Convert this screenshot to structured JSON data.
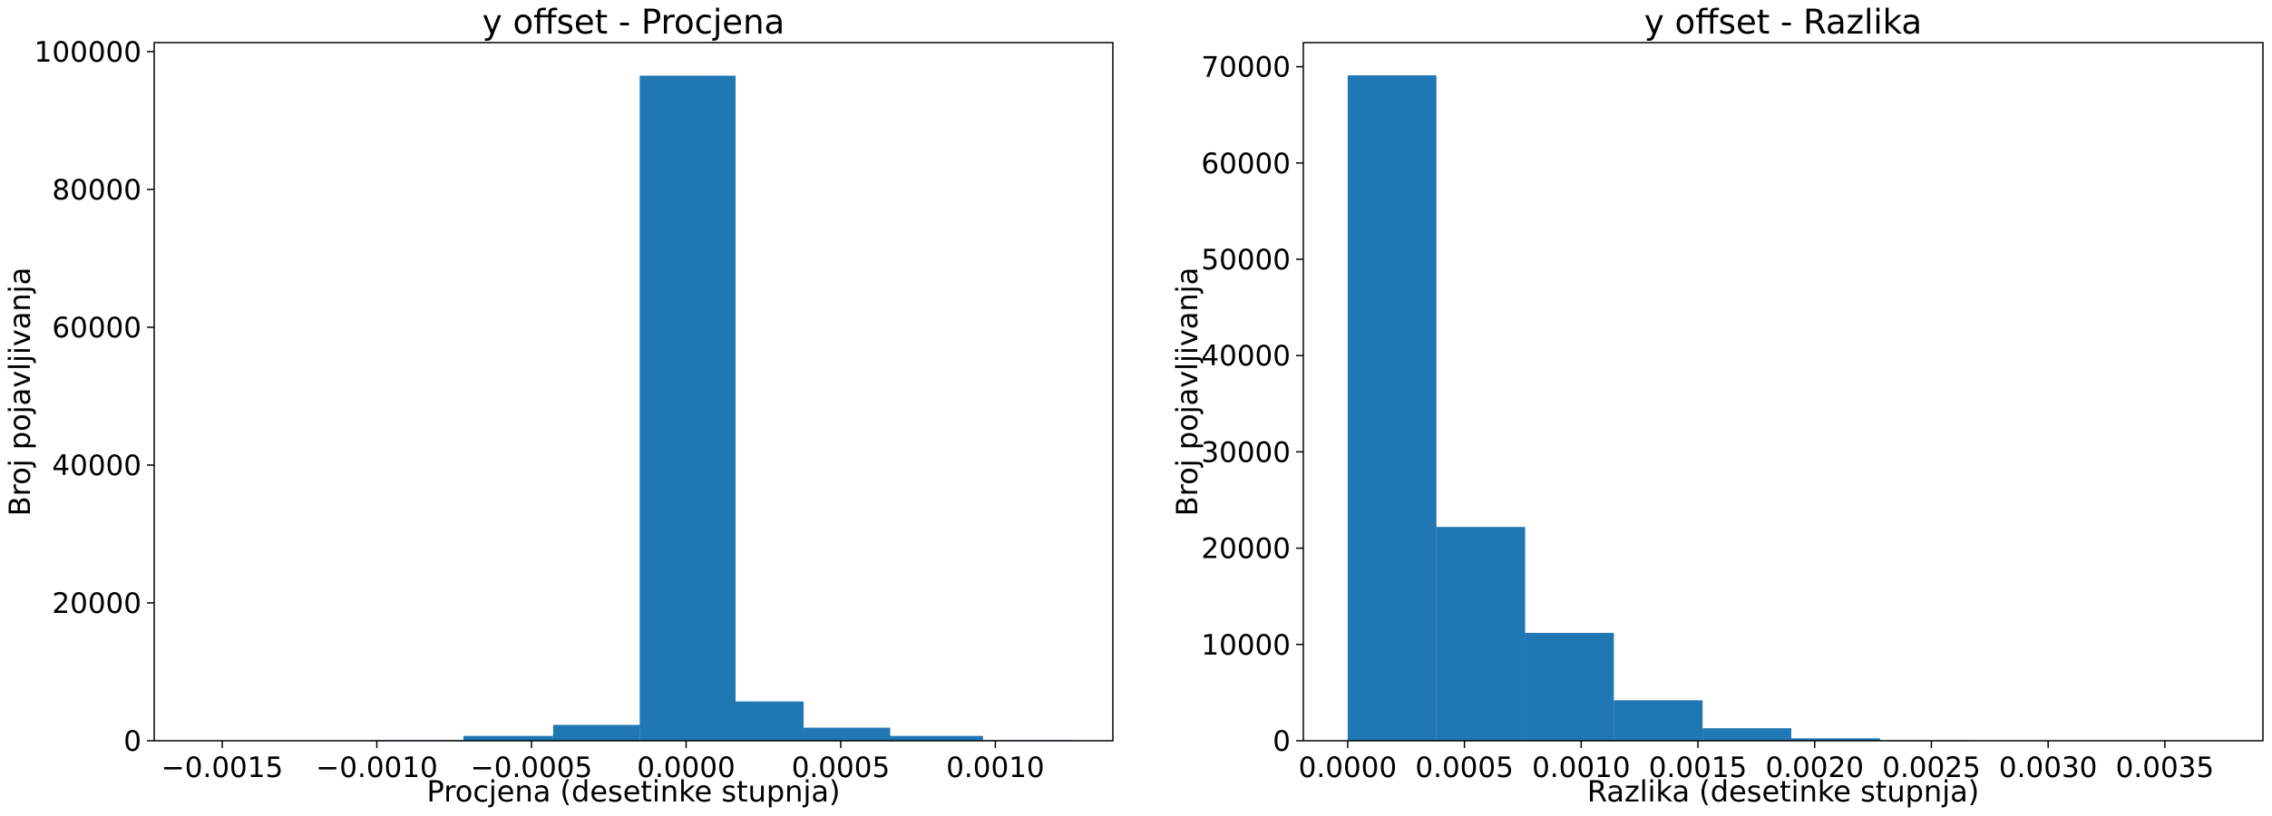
{
  "colors": {
    "bar": "#1f77b4",
    "axes": "#000000",
    "background": "#ffffff"
  },
  "chart_data": [
    {
      "type": "bar",
      "subtype": "histogram",
      "title": "y offset - Procjena",
      "xlabel": "Procjena (desetinke stupnja)",
      "ylabel": "Broj pojavljivanja",
      "xlim": [
        -0.00172,
        0.00138
      ],
      "ylim": [
        0,
        101300
      ],
      "grid": false,
      "bin_edges": [
        -0.00163,
        -0.00133,
        -0.00102,
        -0.00072,
        -0.00043,
        -0.00015,
        0.00016,
        0.00038,
        0.00066,
        0.00096,
        0.00125
      ],
      "values": [
        20,
        50,
        100,
        700,
        2300,
        96500,
        5700,
        1900,
        700,
        100
      ],
      "xticks": [
        -0.0015,
        -0.001,
        -0.0005,
        0.0,
        0.0005,
        0.001
      ],
      "xtick_labels": [
        "−0.0015",
        "−0.0010",
        "−0.0005",
        "0.0000",
        "0.0005",
        "0.0010"
      ],
      "yticks": [
        0,
        20000,
        40000,
        60000,
        80000,
        100000
      ],
      "ytick_labels": [
        "0",
        "20000",
        "40000",
        "60000",
        "80000",
        "100000"
      ]
    },
    {
      "type": "bar",
      "subtype": "histogram",
      "title": "y offset - Razlika",
      "xlabel": "Razlika (desetinke stupnja)",
      "ylabel": "Broj pojavljivanja",
      "xlim": [
        -0.00019,
        0.00392
      ],
      "ylim": [
        0,
        72500
      ],
      "grid": false,
      "bin_edges": [
        0.0,
        0.00038,
        0.00076,
        0.00114,
        0.00152,
        0.0019,
        0.00228,
        0.00266,
        0.00304,
        0.00342,
        0.0038
      ],
      "values": [
        69100,
        22200,
        11200,
        4200,
        1300,
        250,
        60,
        20,
        10,
        5
      ],
      "xticks": [
        0.0,
        0.0005,
        0.001,
        0.0015,
        0.002,
        0.0025,
        0.003,
        0.0035
      ],
      "xtick_labels": [
        "0.0000",
        "0.0005",
        "0.0010",
        "0.0015",
        "0.0020",
        "0.0025",
        "0.0030",
        "0.0035"
      ],
      "yticks": [
        0,
        10000,
        20000,
        30000,
        40000,
        50000,
        60000,
        70000
      ],
      "ytick_labels": [
        "0",
        "10000",
        "20000",
        "30000",
        "40000",
        "50000",
        "60000",
        "70000"
      ]
    }
  ]
}
